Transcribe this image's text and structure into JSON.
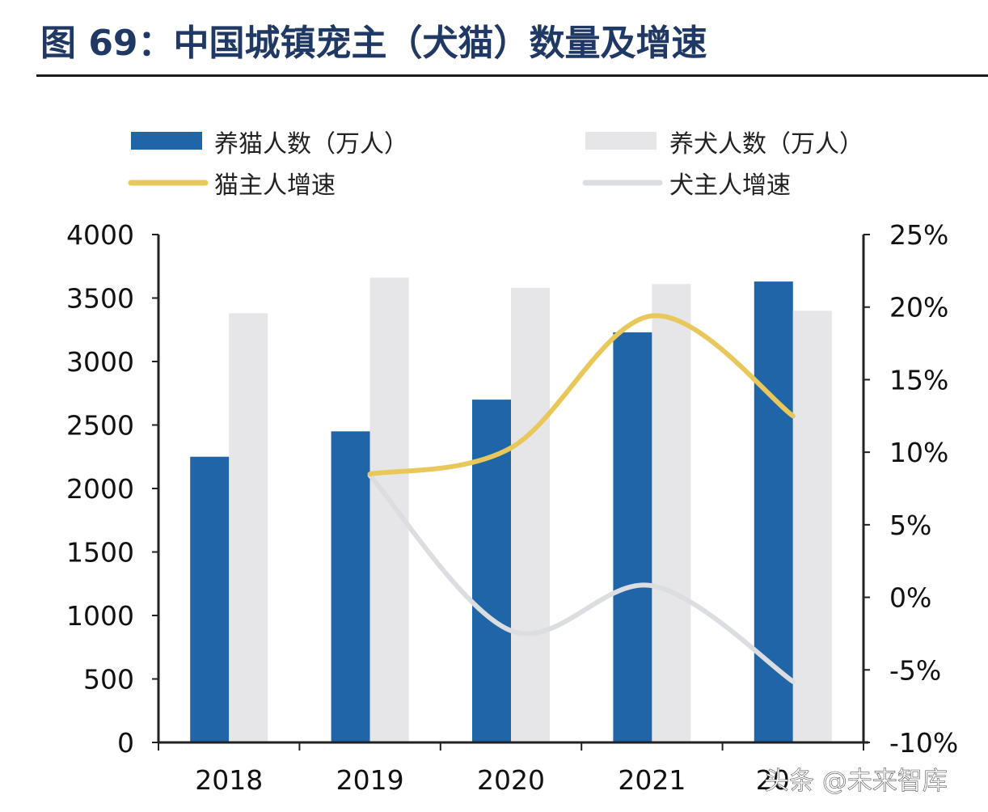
{
  "title": "图 69：中国城镇宠主（犬猫）数量及增速",
  "watermark": "头条 @未来智库",
  "colors": {
    "cat_bar": "#1f65a8",
    "dog_bar": "#e6e6e8",
    "cat_line": "#e8c85a",
    "dog_line": "#dcdde1",
    "axis": "#222222",
    "title": "#1f3864"
  },
  "chart_data": {
    "type": "bar",
    "categories": [
      "2018",
      "2019",
      "2020",
      "2021",
      "2022"
    ],
    "category_tick_labels": [
      "2018",
      "2019",
      "2020",
      "2021",
      "20"
    ],
    "series": [
      {
        "name": "养猫人数（万人）",
        "kind": "bar",
        "axis": "left",
        "values": [
          2250,
          2450,
          2700,
          3230,
          3630
        ]
      },
      {
        "name": "养犬人数（万人）",
        "kind": "bar",
        "axis": "left",
        "values": [
          3380,
          3660,
          3580,
          3610,
          3400
        ]
      },
      {
        "name": "猫主人增速",
        "kind": "line",
        "axis": "right",
        "values": [
          null,
          8.5,
          10.3,
          19.4,
          12.5
        ]
      },
      {
        "name": "犬主人增速",
        "kind": "line",
        "axis": "right",
        "values": [
          null,
          8.4,
          -2.3,
          0.8,
          -5.8
        ]
      }
    ],
    "y_left": {
      "min": 0,
      "max": 4000,
      "ticks": [
        0,
        500,
        1000,
        1500,
        2000,
        2500,
        3000,
        3500,
        4000
      ]
    },
    "y_right": {
      "min": -10,
      "max": 25,
      "ticks": [
        -10,
        -5,
        0,
        5,
        10,
        15,
        20,
        25
      ],
      "tick_labels": [
        "-10%",
        "-5%",
        "0%",
        "5%",
        "10%",
        "15%",
        "20%",
        "25%"
      ]
    },
    "legend": {
      "position": "top",
      "columns": 2
    },
    "grid": false
  }
}
